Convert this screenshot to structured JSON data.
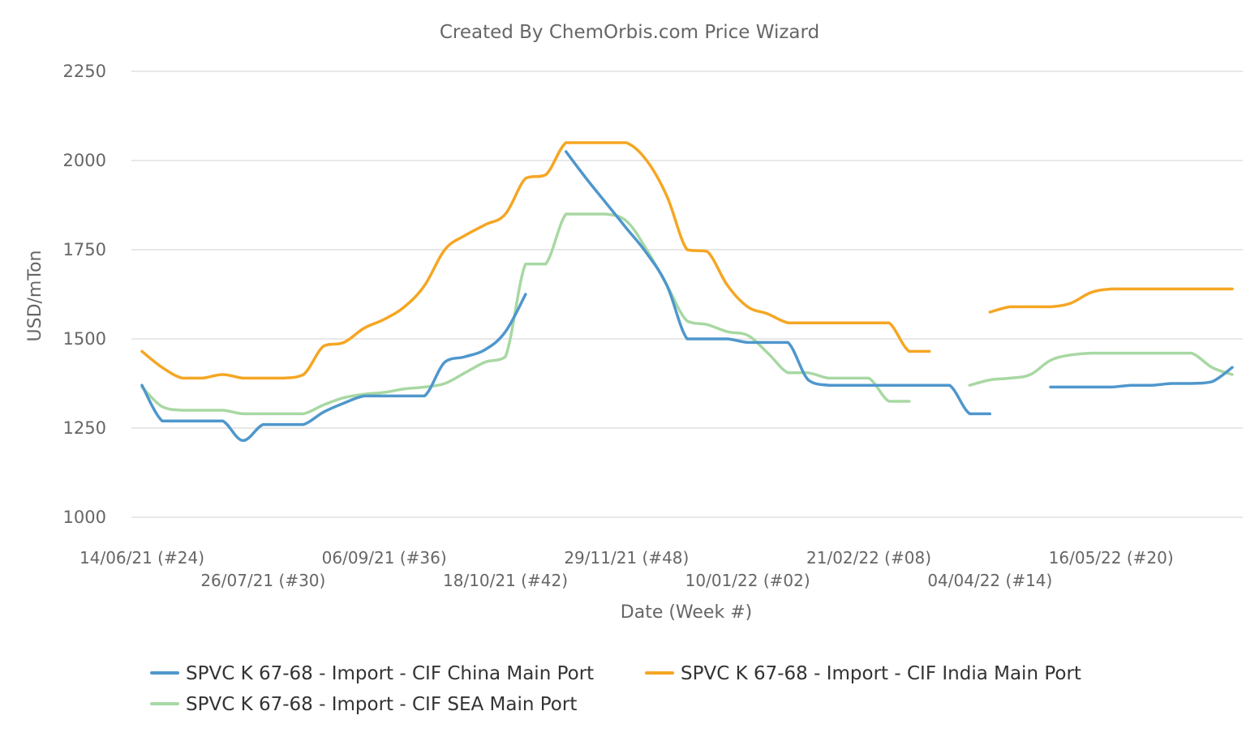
{
  "chart_data": {
    "type": "line",
    "title": "Created By ChemOrbis.com Price Wizard",
    "xlabel": "Date (Week #)",
    "ylabel": "USD/mTon",
    "ylim": [
      1000,
      2250
    ],
    "yticks": [
      1000,
      1250,
      1500,
      1750,
      2000,
      2250
    ],
    "grid": true,
    "legend_position": "bottom",
    "x_start_label": "14/06/21 (#24)",
    "x_end_label": "16/05/22 (#20)",
    "x": [
      "14/06/21",
      "21/06/21",
      "28/06/21",
      "05/07/21",
      "12/07/21",
      "19/07/21",
      "26/07/21",
      "02/08/21",
      "09/08/21",
      "16/08/21",
      "23/08/21",
      "30/08/21",
      "06/09/21",
      "13/09/21",
      "20/09/21",
      "27/09/21",
      "04/10/21",
      "11/10/21",
      "18/10/21",
      "25/10/21",
      "01/11/21",
      "08/11/21",
      "15/11/21",
      "22/11/21",
      "29/11/21",
      "06/12/21",
      "13/12/21",
      "20/12/21",
      "27/12/21",
      "03/01/22",
      "10/01/22",
      "17/01/22",
      "24/01/22",
      "31/01/22",
      "07/02/22",
      "14/02/22",
      "21/02/22",
      "28/02/22",
      "07/03/22",
      "14/03/22",
      "21/03/22",
      "28/03/22",
      "04/04/22",
      "11/04/22",
      "18/04/22",
      "25/04/22",
      "02/05/22",
      "09/05/22",
      "16/05/22",
      "23/05/22",
      "30/05/22",
      "06/06/22",
      "13/06/22",
      "20/06/22",
      "27/06/22"
    ],
    "x_tick_labels": [
      {
        "index": 0,
        "label": "14/06/21 (#24)",
        "row": 1
      },
      {
        "index": 6,
        "label": "26/07/21 (#30)",
        "row": 2
      },
      {
        "index": 12,
        "label": "06/09/21 (#36)",
        "row": 1
      },
      {
        "index": 18,
        "label": "18/10/21 (#42)",
        "row": 2
      },
      {
        "index": 24,
        "label": "29/11/21 (#48)",
        "row": 1
      },
      {
        "index": 30,
        "label": "10/01/22 (#02)",
        "row": 2
      },
      {
        "index": 36,
        "label": "21/02/22 (#08)",
        "row": 1
      },
      {
        "index": 42,
        "label": "04/04/22 (#14)",
        "row": 2
      },
      {
        "index": 48,
        "label": "16/05/22 (#20)",
        "row": 1
      }
    ],
    "series": [
      {
        "name": "SPVC K 67-68 - Import - CIF China Main Port",
        "color": "#4f97cc",
        "values": [
          1370,
          1270,
          1270,
          1270,
          1270,
          1215,
          1260,
          1260,
          1260,
          1295,
          1320,
          1340,
          1340,
          1340,
          1340,
          1435,
          1450,
          1470,
          1520,
          1625,
          null,
          2025,
          1950,
          1880,
          1810,
          1740,
          1650,
          1500,
          1500,
          1500,
          1490,
          1490,
          1490,
          1385,
          1370,
          1370,
          1370,
          1370,
          1370,
          1370,
          1370,
          1290,
          1290,
          null,
          null,
          1365,
          1365,
          1365,
          1365,
          1370,
          1370,
          1375,
          1375,
          1380,
          1420
        ]
      },
      {
        "name": "SPVC K 67-68 - Import - CIF India Main Port",
        "color": "#f5a623",
        "values": [
          1465,
          1420,
          1390,
          1390,
          1400,
          1390,
          1390,
          1390,
          1400,
          1480,
          1490,
          1530,
          1555,
          1590,
          1650,
          1750,
          1790,
          1820,
          1850,
          1950,
          1960,
          2050,
          2050,
          2050,
          2050,
          2000,
          1900,
          1750,
          1745,
          1650,
          1590,
          1570,
          1545,
          1545,
          1545,
          1545,
          1545,
          1545,
          1465,
          1465,
          null,
          null,
          1575,
          1590,
          1590,
          1590,
          1600,
          1630,
          1640,
          1640,
          1640,
          1640,
          1640,
          1640,
          1640
        ]
      },
      {
        "name": "SPVC K 67-68 - Import - CIF SEA Main Port",
        "color": "#a8d8a3",
        "values": [
          1365,
          1310,
          1300,
          1300,
          1300,
          1290,
          1290,
          1290,
          1290,
          1315,
          1335,
          1345,
          1350,
          1360,
          1365,
          1375,
          1405,
          1435,
          1450,
          1710,
          1710,
          1850,
          1850,
          1850,
          1830,
          1750,
          1650,
          1550,
          1540,
          1520,
          1510,
          1460,
          1405,
          1405,
          1390,
          1390,
          1390,
          1325,
          1325,
          null,
          null,
          1370,
          1385,
          1390,
          1400,
          1440,
          1455,
          1460,
          1460,
          1460,
          1460,
          1460,
          1460,
          1420,
          1400
        ]
      }
    ]
  }
}
